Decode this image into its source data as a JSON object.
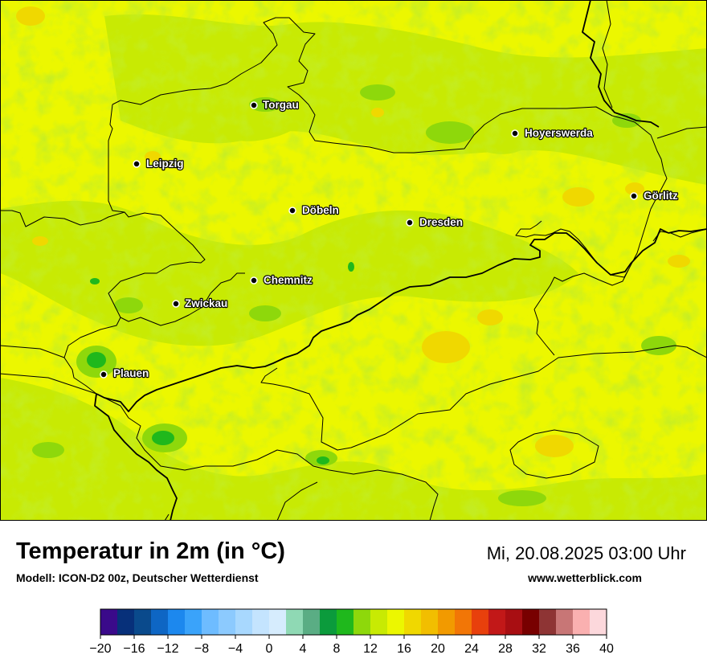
{
  "header": {
    "title": "Temperatur in 2m (in °C)",
    "model": "Modell: ICON-D2 00z, Deutscher Wetterdienst",
    "datetime": "Mi, 20.08.2025 03:00 Uhr",
    "website": "www.wetterblick.com"
  },
  "map": {
    "cities": [
      {
        "name": "Torgau"
      },
      {
        "name": "Leipzig"
      },
      {
        "name": "Hoyerswerda"
      },
      {
        "name": "Görlitz"
      },
      {
        "name": "Döbeln"
      },
      {
        "name": "Dresden"
      },
      {
        "name": "Chemnitz"
      },
      {
        "name": "Zwickau"
      },
      {
        "name": "Plauen"
      }
    ]
  },
  "legend": {
    "ticks": [
      "−20",
      "−16",
      "−12",
      "−8",
      "−4",
      "0",
      "4",
      "8",
      "12",
      "16",
      "20",
      "24",
      "28",
      "32",
      "36",
      "40"
    ],
    "colors": [
      "#3a0a8a",
      "#07307a",
      "#0a4a8c",
      "#0e66c4",
      "#1c88ee",
      "#3aa3fa",
      "#6ebcff",
      "#8ccafe",
      "#a8d8fe",
      "#c4e4fe",
      "#d6ecfd",
      "#8fd9b4",
      "#5aad84",
      "#0b9b3c",
      "#1fb81c",
      "#8ed80b",
      "#c8ea03",
      "#ecf700",
      "#f0d800",
      "#f2be00",
      "#f29a00",
      "#f27606",
      "#e8400c",
      "#c21818",
      "#a80e12",
      "#780000",
      "#8e3434",
      "#c87676",
      "#fab0b0",
      "#fcd8dc"
    ]
  }
}
